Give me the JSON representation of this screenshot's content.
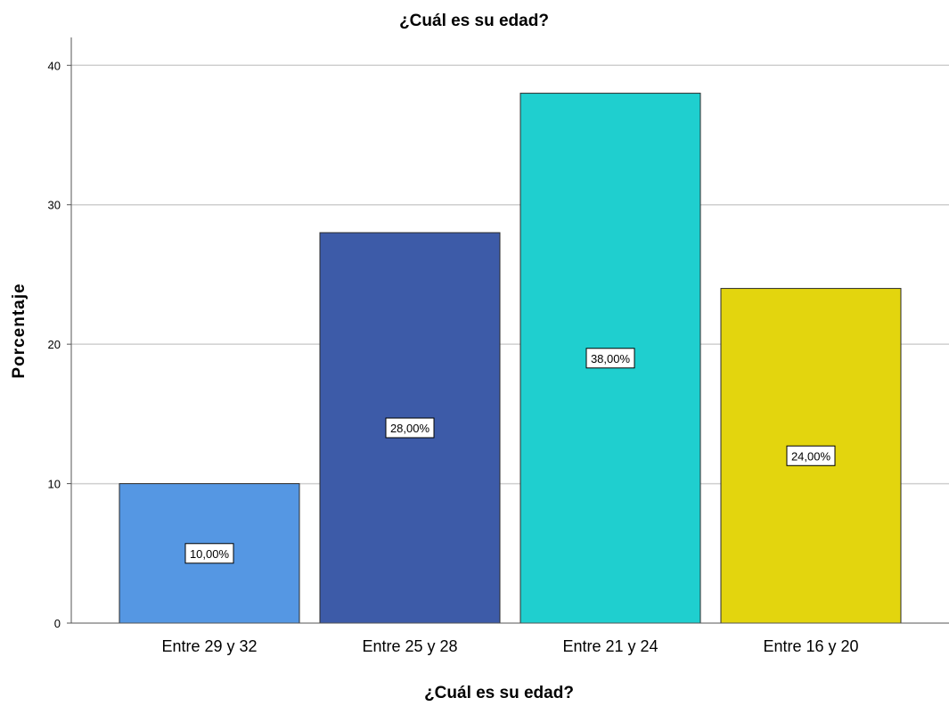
{
  "chart_data": {
    "type": "bar",
    "title": "¿Cuál es su edad?",
    "xlabel": "¿Cuál es su edad?",
    "ylabel": "Porcentaje",
    "categories": [
      "Entre 29 y 32",
      "Entre 25 y 28",
      "Entre 21 y 24",
      "Entre 16 y 20"
    ],
    "values": [
      10,
      28,
      38,
      24
    ],
    "data_labels": [
      "10,00%",
      "28,00%",
      "38,00%",
      "24,00%"
    ],
    "colors": [
      "#5597e3",
      "#3d5ba8",
      "#1fcfcf",
      "#e3d50e"
    ],
    "ylim": [
      0,
      42
    ],
    "yticks": [
      0,
      10,
      20,
      30,
      40
    ],
    "ytick_labels": [
      "0",
      "10",
      "20",
      "30",
      "40"
    ],
    "grid": true,
    "legend": "none"
  }
}
